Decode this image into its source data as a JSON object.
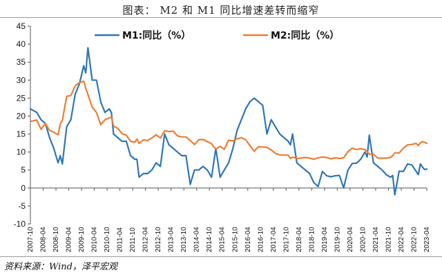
{
  "title": "图表： M2 和 M1 同比增速差转而缩窄",
  "source": "资料来源：Wind，泽平宏观",
  "chart_data": {
    "type": "line",
    "ylim": [
      -10,
      45
    ],
    "yticks": [
      -10,
      -5,
      0,
      5,
      10,
      15,
      20,
      25,
      30,
      35,
      40,
      45
    ],
    "xlim": [
      "2007-10",
      "2023-04"
    ],
    "xtick_labels": [
      "2007-10",
      "2008-04",
      "2008-10",
      "2009-04",
      "2009-10",
      "2010-04",
      "2010-10",
      "2011-04",
      "2011-10",
      "2012-04",
      "2012-10",
      "2013-04",
      "2013-10",
      "2014-04",
      "2014-10",
      "2015-04",
      "2015-10",
      "2016-04",
      "2016-10",
      "2017-04",
      "2017-10",
      "2018-04",
      "2018-10",
      "2019-04",
      "2019-10",
      "2020-04",
      "2020-10",
      "2021-04",
      "2021-10",
      "2022-04",
      "2022-10",
      "2023-04"
    ],
    "grid": false,
    "legend_position": "top-center",
    "series": [
      {
        "name": "M1:同比（%）",
        "color": "#2e75b6",
        "points": [
          [
            "2007-10",
            22
          ],
          [
            "2008-01",
            21
          ],
          [
            "2008-03",
            19
          ],
          [
            "2008-05",
            18
          ],
          [
            "2008-07",
            14
          ],
          [
            "2008-09",
            11
          ],
          [
            "2008-11",
            7
          ],
          [
            "2008-12",
            9
          ],
          [
            "2009-01",
            6.7
          ],
          [
            "2009-03",
            17
          ],
          [
            "2009-05",
            19
          ],
          [
            "2009-07",
            26
          ],
          [
            "2009-09",
            29
          ],
          [
            "2009-11",
            34
          ],
          [
            "2009-12",
            32
          ],
          [
            "2010-01",
            39
          ],
          [
            "2010-03",
            30
          ],
          [
            "2010-05",
            30
          ],
          [
            "2010-07",
            24
          ],
          [
            "2010-09",
            21
          ],
          [
            "2010-11",
            22
          ],
          [
            "2010-12",
            21
          ],
          [
            "2011-01",
            15
          ],
          [
            "2011-03",
            14
          ],
          [
            "2011-05",
            13
          ],
          [
            "2011-07",
            13
          ],
          [
            "2011-09",
            9
          ],
          [
            "2011-11",
            8
          ],
          [
            "2011-12",
            8
          ],
          [
            "2012-01",
            3
          ],
          [
            "2012-03",
            4
          ],
          [
            "2012-05",
            4
          ],
          [
            "2012-07",
            5
          ],
          [
            "2012-09",
            7
          ],
          [
            "2012-11",
            6
          ],
          [
            "2013-01",
            15
          ],
          [
            "2013-03",
            12
          ],
          [
            "2013-05",
            11
          ],
          [
            "2013-07",
            10
          ],
          [
            "2013-09",
            9
          ],
          [
            "2013-11",
            9
          ],
          [
            "2014-01",
            1
          ],
          [
            "2014-03",
            5
          ],
          [
            "2014-05",
            5
          ],
          [
            "2014-07",
            6
          ],
          [
            "2014-09",
            5
          ],
          [
            "2014-11",
            3
          ],
          [
            "2015-01",
            11
          ],
          [
            "2015-03",
            3
          ],
          [
            "2015-05",
            5
          ],
          [
            "2015-07",
            7
          ],
          [
            "2015-09",
            11
          ],
          [
            "2015-11",
            16
          ],
          [
            "2016-01",
            19
          ],
          [
            "2016-03",
            22
          ],
          [
            "2016-05",
            24
          ],
          [
            "2016-07",
            25
          ],
          [
            "2016-09",
            24
          ],
          [
            "2016-11",
            23
          ],
          [
            "2017-01",
            15
          ],
          [
            "2017-03",
            19
          ],
          [
            "2017-05",
            17
          ],
          [
            "2017-07",
            15
          ],
          [
            "2017-09",
            14
          ],
          [
            "2017-11",
            13
          ],
          [
            "2017-12",
            12
          ],
          [
            "2018-01",
            15
          ],
          [
            "2018-03",
            7
          ],
          [
            "2018-05",
            6
          ],
          [
            "2018-07",
            5
          ],
          [
            "2018-09",
            4
          ],
          [
            "2018-11",
            1.5
          ],
          [
            "2019-01",
            0.4
          ],
          [
            "2019-03",
            4.6
          ],
          [
            "2019-05",
            3.4
          ],
          [
            "2019-07",
            3.1
          ],
          [
            "2019-09",
            3.4
          ],
          [
            "2019-11",
            3.5
          ],
          [
            "2020-01",
            0
          ],
          [
            "2020-03",
            5
          ],
          [
            "2020-05",
            6.8
          ],
          [
            "2020-07",
            6.9
          ],
          [
            "2020-09",
            8
          ],
          [
            "2020-11",
            10
          ],
          [
            "2020-12",
            8.6
          ],
          [
            "2021-01",
            14.7
          ],
          [
            "2021-03",
            7
          ],
          [
            "2021-05",
            6
          ],
          [
            "2021-07",
            5
          ],
          [
            "2021-09",
            3.7
          ],
          [
            "2021-11",
            3
          ],
          [
            "2021-12",
            3.5
          ],
          [
            "2022-01",
            -1.9
          ],
          [
            "2022-03",
            4.7
          ],
          [
            "2022-05",
            4.6
          ],
          [
            "2022-07",
            6.7
          ],
          [
            "2022-09",
            6.4
          ],
          [
            "2022-11",
            4.6
          ],
          [
            "2022-12",
            3.7
          ],
          [
            "2023-01",
            6.7
          ],
          [
            "2023-02",
            5.8
          ],
          [
            "2023-03",
            5.1
          ],
          [
            "2023-04",
            5.3
          ]
        ]
      },
      {
        "name": "M2:同比（%）",
        "color": "#ed7d31",
        "points": [
          [
            "2007-10",
            18.5
          ],
          [
            "2008-01",
            18.9
          ],
          [
            "2008-03",
            16.3
          ],
          [
            "2008-05",
            18
          ],
          [
            "2008-07",
            16
          ],
          [
            "2008-09",
            15.5
          ],
          [
            "2008-11",
            14.8
          ],
          [
            "2008-12",
            17.8
          ],
          [
            "2009-01",
            18.8
          ],
          [
            "2009-03",
            25.5
          ],
          [
            "2009-05",
            25.7
          ],
          [
            "2009-07",
            28.4
          ],
          [
            "2009-09",
            29.3
          ],
          [
            "2009-11",
            29.7
          ],
          [
            "2009-12",
            27.7
          ],
          [
            "2010-01",
            26
          ],
          [
            "2010-03",
            22.5
          ],
          [
            "2010-05",
            21
          ],
          [
            "2010-07",
            17.6
          ],
          [
            "2010-09",
            19
          ],
          [
            "2010-11",
            19.5
          ],
          [
            "2010-12",
            19.7
          ],
          [
            "2011-01",
            17.2
          ],
          [
            "2011-03",
            16.6
          ],
          [
            "2011-05",
            15.1
          ],
          [
            "2011-07",
            14.7
          ],
          [
            "2011-09",
            13
          ],
          [
            "2011-11",
            12.7
          ],
          [
            "2011-12",
            13.6
          ],
          [
            "2012-01",
            12.4
          ],
          [
            "2012-03",
            13.4
          ],
          [
            "2012-05",
            13.2
          ],
          [
            "2012-07",
            13.9
          ],
          [
            "2012-09",
            14.8
          ],
          [
            "2012-11",
            13.9
          ],
          [
            "2013-01",
            15.9
          ],
          [
            "2013-03",
            15.7
          ],
          [
            "2013-05",
            15.8
          ],
          [
            "2013-07",
            14.5
          ],
          [
            "2013-09",
            14.2
          ],
          [
            "2013-11",
            14.2
          ],
          [
            "2014-01",
            13.2
          ],
          [
            "2014-03",
            12.1
          ],
          [
            "2014-05",
            13.4
          ],
          [
            "2014-07",
            13.5
          ],
          [
            "2014-09",
            12.9
          ],
          [
            "2014-11",
            12.3
          ],
          [
            "2015-01",
            10.8
          ],
          [
            "2015-03",
            11.6
          ],
          [
            "2015-05",
            10.8
          ],
          [
            "2015-07",
            13.3
          ],
          [
            "2015-09",
            13.1
          ],
          [
            "2015-11",
            13.7
          ],
          [
            "2016-01",
            14
          ],
          [
            "2016-03",
            13.4
          ],
          [
            "2016-05",
            11.8
          ],
          [
            "2016-07",
            10.2
          ],
          [
            "2016-09",
            11.5
          ],
          [
            "2016-11",
            11.4
          ],
          [
            "2017-01",
            11.3
          ],
          [
            "2017-03",
            10.6
          ],
          [
            "2017-05",
            9.6
          ],
          [
            "2017-07",
            9.2
          ],
          [
            "2017-09",
            9.2
          ],
          [
            "2017-11",
            9.1
          ],
          [
            "2017-12",
            8.2
          ],
          [
            "2018-01",
            8.6
          ],
          [
            "2018-03",
            8.2
          ],
          [
            "2018-05",
            8.3
          ],
          [
            "2018-07",
            8.5
          ],
          [
            "2018-09",
            8.3
          ],
          [
            "2018-11",
            8
          ],
          [
            "2019-01",
            8.4
          ],
          [
            "2019-03",
            8.6
          ],
          [
            "2019-05",
            8.5
          ],
          [
            "2019-07",
            8.1
          ],
          [
            "2019-09",
            8.4
          ],
          [
            "2019-11",
            8.2
          ],
          [
            "2020-01",
            8.4
          ],
          [
            "2020-03",
            10.1
          ],
          [
            "2020-05",
            11.1
          ],
          [
            "2020-07",
            10.7
          ],
          [
            "2020-09",
            10.9
          ],
          [
            "2020-11",
            10.7
          ],
          [
            "2020-12",
            10.1
          ],
          [
            "2021-01",
            9.4
          ],
          [
            "2021-03",
            9.4
          ],
          [
            "2021-05",
            8.3
          ],
          [
            "2021-07",
            8.3
          ],
          [
            "2021-09",
            8.3
          ],
          [
            "2021-11",
            8.5
          ],
          [
            "2021-12",
            9
          ],
          [
            "2022-01",
            9.8
          ],
          [
            "2022-03",
            9.7
          ],
          [
            "2022-05",
            11.1
          ],
          [
            "2022-07",
            12
          ],
          [
            "2022-09",
            12.1
          ],
          [
            "2022-11",
            12.4
          ],
          [
            "2022-12",
            11.8
          ],
          [
            "2023-01",
            12.6
          ],
          [
            "2023-02",
            12.9
          ],
          [
            "2023-03",
            12.7
          ],
          [
            "2023-04",
            12.4
          ]
        ]
      }
    ]
  }
}
